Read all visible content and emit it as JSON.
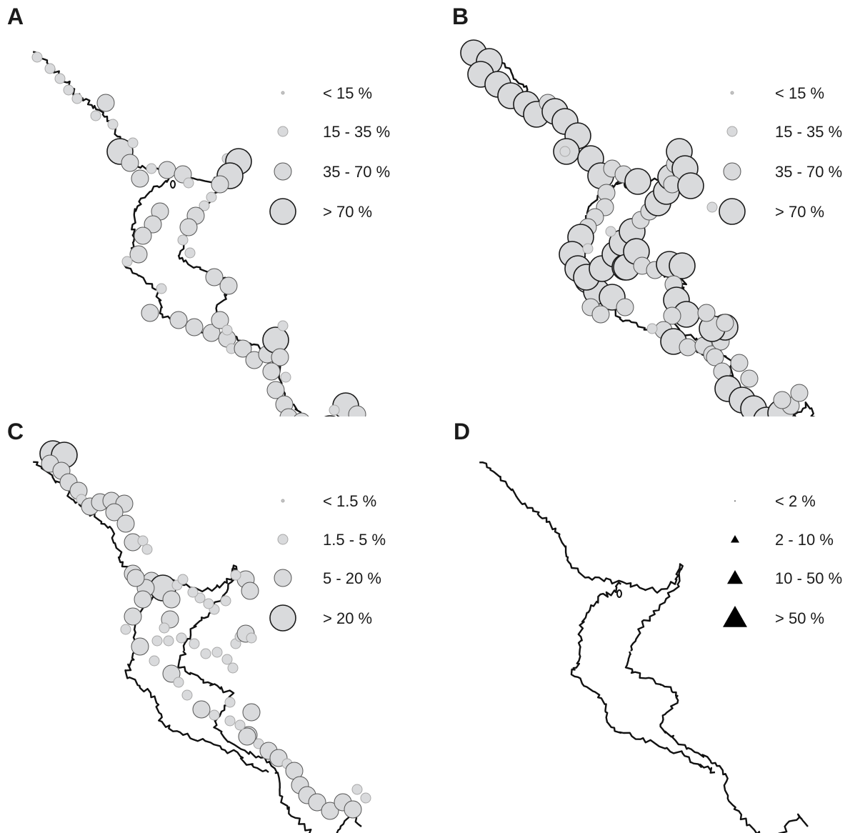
{
  "colors": {
    "coastline": "#111111",
    "circle_fill": "#d9dadc",
    "circle_stroke_dark": "#1a1a1a",
    "circle_stroke_light": "#a8a8a8",
    "triangle_fill": "#000000",
    "text": "#1a1a1a"
  },
  "panels": [
    {
      "letter": "A",
      "symbol": "circle",
      "legend": [
        {
          "label": "< 15 %",
          "size_class": 0
        },
        {
          "label": "15 - 35 %",
          "size_class": 1
        },
        {
          "label": "35 - 70 %",
          "size_class": 2
        },
        {
          "label": "> 70 %",
          "size_class": 3
        }
      ]
    },
    {
      "letter": "B",
      "symbol": "circle",
      "legend": [
        {
          "label": "< 15 %",
          "size_class": 0
        },
        {
          "label": "15 - 35 %",
          "size_class": 1
        },
        {
          "label": "35 - 70 %",
          "size_class": 2
        },
        {
          "label": "> 70 %",
          "size_class": 3
        }
      ]
    },
    {
      "letter": "C",
      "symbol": "circle",
      "legend": [
        {
          "label": "< 1.5 %",
          "size_class": 0
        },
        {
          "label": "1.5 - 5 %",
          "size_class": 1
        },
        {
          "label": "5 - 20 %",
          "size_class": 2
        },
        {
          "label": "> 20 %",
          "size_class": 3
        }
      ]
    },
    {
      "letter": "D",
      "symbol": "triangle",
      "legend": [
        {
          "label": "< 2 %",
          "size_class": 0
        },
        {
          "label": "2 - 10 %",
          "size_class": 1
        },
        {
          "label": "10 - 50 %",
          "size_class": 2
        },
        {
          "label": "> 50 %",
          "size_class": 3
        }
      ]
    }
  ]
}
